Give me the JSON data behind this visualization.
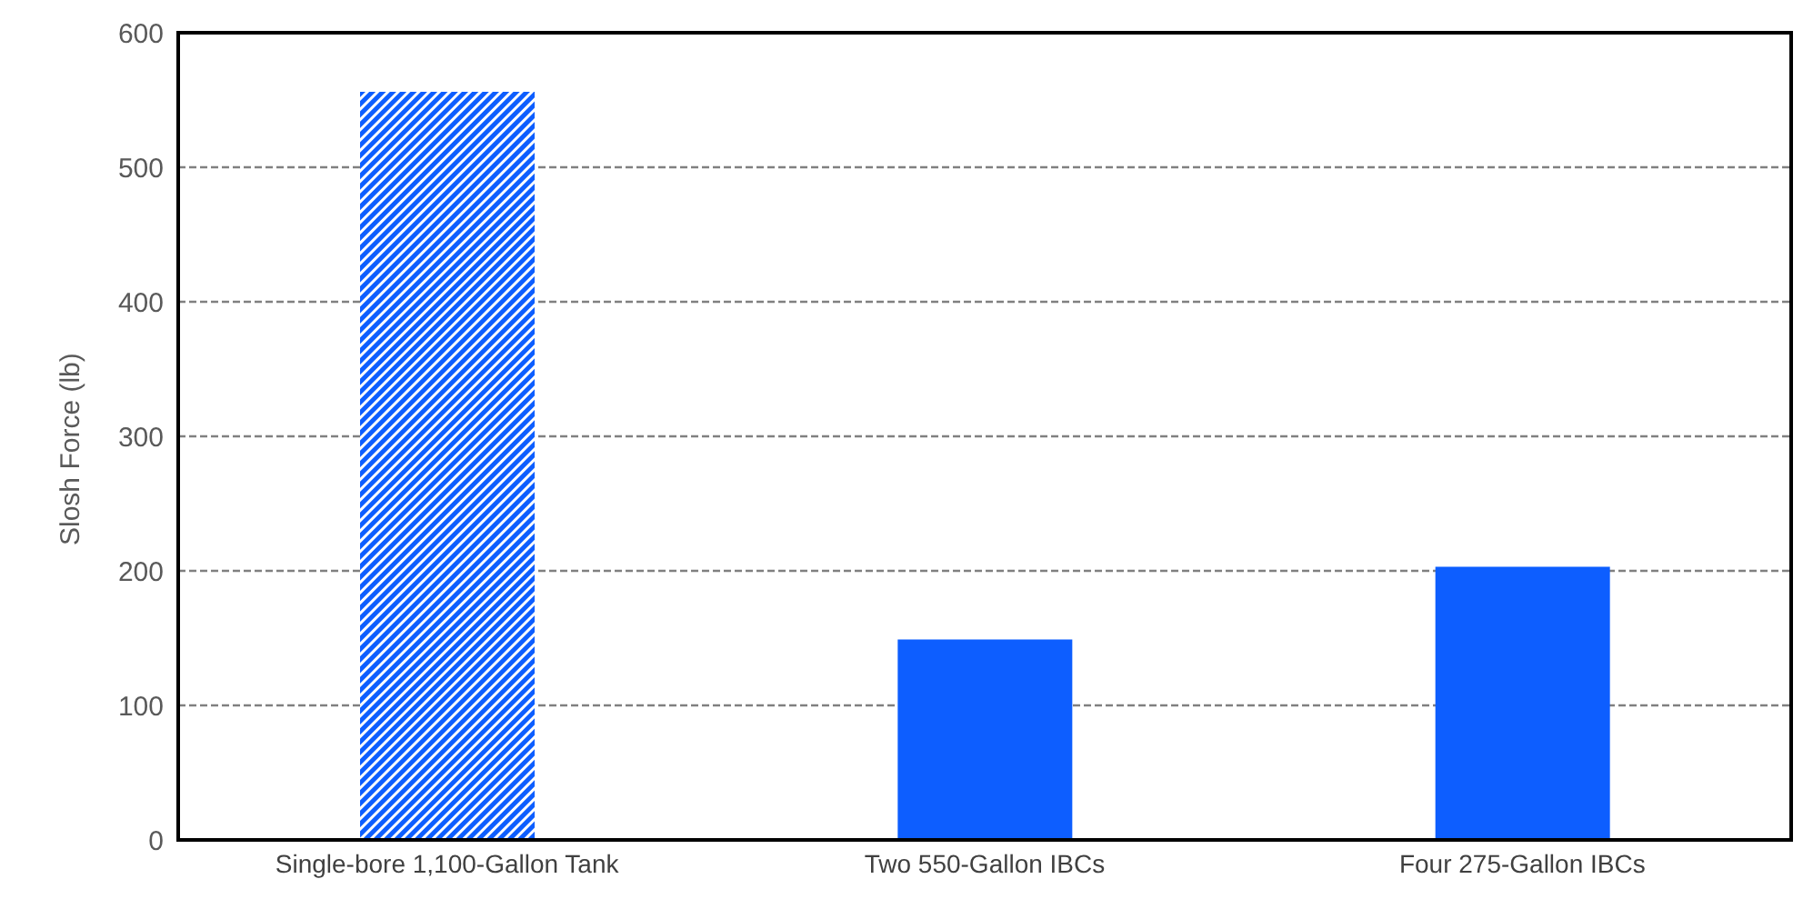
{
  "chart_data": {
    "type": "bar",
    "ylabel": "Slosh Force (lb)",
    "categories": [
      "Single-bore 1,100-Gallon Tank",
      "Two 550-Gallon IBCs",
      "Four 275-Gallon IBCs"
    ],
    "values": [
      556,
      149,
      203
    ],
    "colors": [
      "#0d5eff",
      "#0d5eff",
      "#0d5eff"
    ],
    "ylim": [
      0,
      600
    ],
    "yticks": [
      0,
      100,
      200,
      300,
      400,
      500,
      600
    ],
    "grid": "y"
  }
}
